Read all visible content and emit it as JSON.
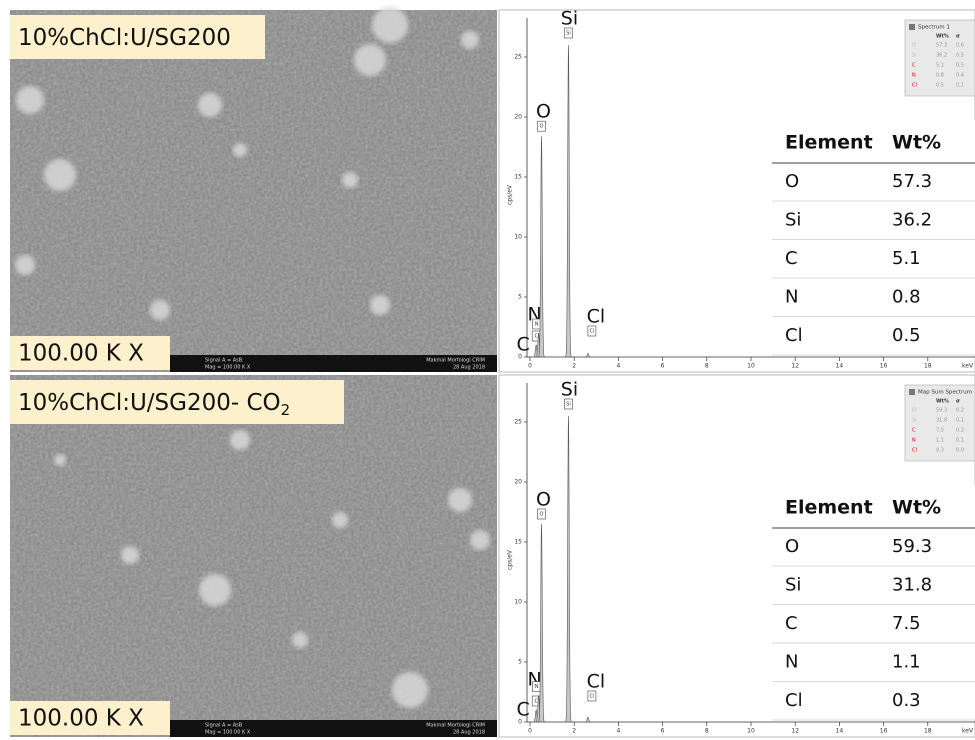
{
  "panels": [
    {
      "sem_label": "10%ChCl:U/SG200",
      "magnification": "100.00 K X",
      "sem_footer": [
        "Signal A = AsB",
        "Mag = 100.00 K X",
        "Makmal Morfologi CRIM",
        "28 Aug 2018"
      ],
      "spectrum": {
        "y_axis_label": "cps/eV",
        "x_unit": "keV",
        "yticks": [
          0,
          5,
          10,
          15,
          20,
          25
        ],
        "xticks": [
          0,
          2,
          4,
          6,
          8,
          10,
          12,
          14,
          16,
          18
        ],
        "peaks": [
          {
            "label": "C",
            "x": 0.28,
            "height": 1
          },
          {
            "label": "N",
            "x": 0.39,
            "height": 2
          },
          {
            "label": "O",
            "x": 0.52,
            "height": 18.4
          },
          {
            "label": "Si",
            "x": 1.74,
            "height": 26
          },
          {
            "label": "Cl",
            "x": 2.62,
            "height": 0.3
          }
        ],
        "legend_title": "Spectrum 1",
        "legend_headers": [
          "Wt%",
          "σ"
        ],
        "legend_rows": [
          [
            "O",
            "57.3",
            "0.6"
          ],
          [
            "Si",
            "36.2",
            "0.5"
          ],
          [
            "C",
            "5.1",
            "0.5"
          ],
          [
            "N",
            "0.8",
            "0.4"
          ],
          [
            "Cl",
            "0.5",
            "0.1"
          ]
        ]
      },
      "table": {
        "headers": [
          "Element",
          "Wt%"
        ],
        "rows": [
          [
            "O",
            "57.3"
          ],
          [
            "Si",
            "36.2"
          ],
          [
            "C",
            "5.1"
          ],
          [
            "N",
            "0.8"
          ],
          [
            "Cl",
            "0.5"
          ]
        ]
      }
    },
    {
      "sem_label": "10%ChCl:U/SG200- CO",
      "sem_label_sub": "2",
      "magnification": "100.00 K X",
      "sem_footer": [
        "Signal A = AsB",
        "Mag = 100.00 K X",
        "Makmal Morfologi CRIM",
        "28 Aug 2018"
      ],
      "spectrum": {
        "y_axis_label": "cps/eV",
        "x_unit": "keV",
        "yticks": [
          0,
          5,
          10,
          15,
          20,
          25
        ],
        "xticks": [
          0,
          2,
          4,
          6,
          8,
          10,
          12,
          14,
          16,
          18
        ],
        "peaks": [
          {
            "label": "C",
            "x": 0.28,
            "height": 1
          },
          {
            "label": "N",
            "x": 0.39,
            "height": 2.2
          },
          {
            "label": "O",
            "x": 0.52,
            "height": 16.5
          },
          {
            "label": "Si",
            "x": 1.74,
            "height": 25.5
          },
          {
            "label": "Cl",
            "x": 2.62,
            "height": 0.4
          }
        ],
        "legend_title": "Map Sum Spectrum",
        "legend_headers": [
          "Wt%",
          "σ"
        ],
        "legend_rows": [
          [
            "O",
            "59.3",
            "0.2"
          ],
          [
            "Si",
            "31.8",
            "0.1"
          ],
          [
            "C",
            "7.5",
            "0.2"
          ],
          [
            "N",
            "1.1",
            "0.1"
          ],
          [
            "Cl",
            "0.3",
            "0.0"
          ]
        ]
      },
      "table": {
        "headers": [
          "Element",
          "Wt%"
        ],
        "rows": [
          [
            "O",
            "59.3"
          ],
          [
            "Si",
            "31.8"
          ],
          [
            "C",
            "7.5"
          ],
          [
            "N",
            "1.1"
          ],
          [
            "Cl",
            "0.3"
          ]
        ]
      }
    }
  ]
}
